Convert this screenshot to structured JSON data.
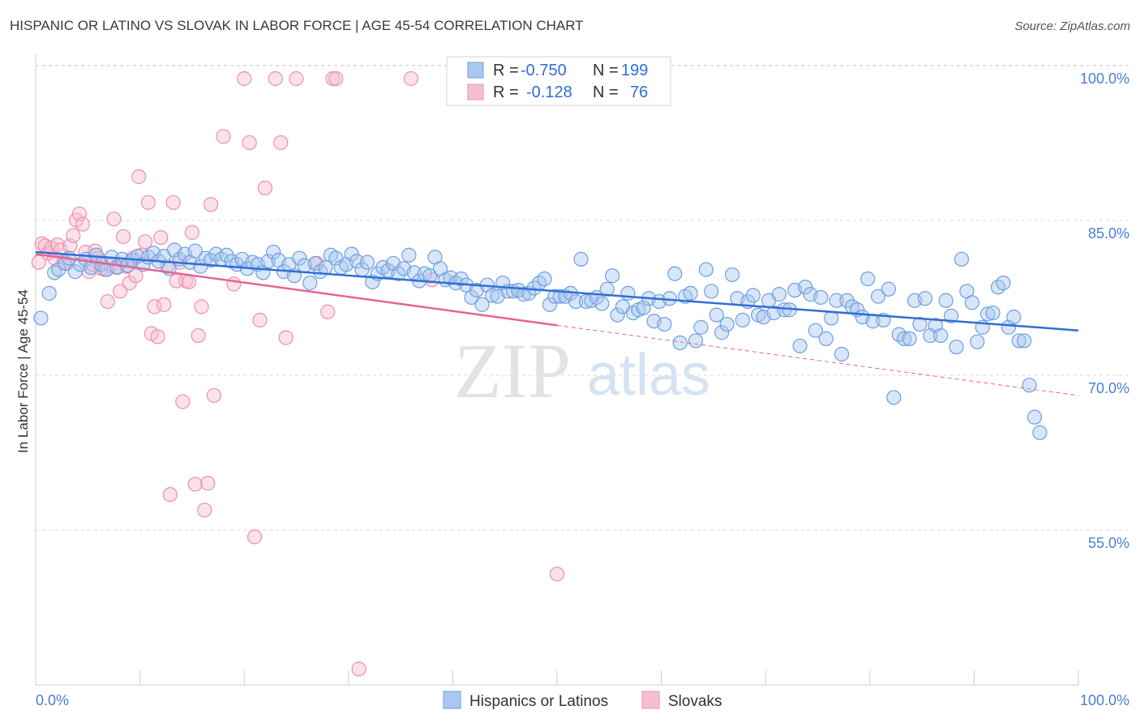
{
  "title": "HISPANIC OR LATINO VS SLOVAK IN LABOR FORCE | AGE 45-54 CORRELATION CHART",
  "source": "Source: ZipAtlas.com",
  "colors": {
    "blue_fill": "#a9c8f0",
    "blue_stroke": "#6d9fe0",
    "blue_line": "#2f6fd6",
    "pink_fill": "#f6bfd0",
    "pink_stroke": "#ee8fae",
    "pink_line": "#e8638f",
    "tick_text": "#4a7fd0",
    "grid": "#d8d8d8"
  },
  "watermark": {
    "zip": "ZIP",
    "atlas": "atlas"
  },
  "legend": {
    "rows": [
      {
        "r_label": "R =",
        "r_value": "-0.750",
        "n_label": "N =",
        "n_value": "199"
      },
      {
        "r_label": "R =",
        "r_value": "-0.128",
        "n_label": "N =",
        "n_value": "76"
      }
    ]
  },
  "chart_data": {
    "type": "scatter",
    "title": "HISPANIC OR LATINO VS SLOVAK IN LABOR FORCE | AGE 45-54 CORRELATION CHART",
    "xlabel": "",
    "ylabel": "In Labor Force | Age 45-54",
    "xlim": [
      0,
      100
    ],
    "ylim": [
      40,
      102
    ],
    "x_tick_labels": [
      "0.0%",
      "100.0%"
    ],
    "y_ticks": [
      55,
      70,
      85,
      100
    ],
    "y_tick_labels": [
      "55.0%",
      "70.0%",
      "85.0%",
      "100.0%"
    ],
    "grid": true,
    "legend_position": "top-center",
    "series": [
      {
        "name": "Hispanics or Latinos",
        "r": -0.75,
        "n": 199,
        "trend": {
          "x": [
            0,
            100
          ],
          "y": [
            83.2,
            75.6
          ]
        },
        "points": [
          [
            0.5,
            76.8
          ],
          [
            1.3,
            79.2
          ],
          [
            1.8,
            81.2
          ],
          [
            2.2,
            81.5
          ],
          [
            2.8,
            82.1
          ],
          [
            3.2,
            82.6
          ],
          [
            3.8,
            81.3
          ],
          [
            4.3,
            82.0
          ],
          [
            4.8,
            82.5
          ],
          [
            5.3,
            81.7
          ],
          [
            5.8,
            82.9
          ],
          [
            6.3,
            82.0
          ],
          [
            6.8,
            81.5
          ],
          [
            7.3,
            82.7
          ],
          [
            7.8,
            81.7
          ],
          [
            8.3,
            82.5
          ],
          [
            8.8,
            81.9
          ],
          [
            9.3,
            82.4
          ],
          [
            9.8,
            82.8
          ],
          [
            10.3,
            82.0
          ],
          [
            10.8,
            82.7
          ],
          [
            11.3,
            83.1
          ],
          [
            11.8,
            82.3
          ],
          [
            12.3,
            82.8
          ],
          [
            12.8,
            81.6
          ],
          [
            13.3,
            83.4
          ],
          [
            13.8,
            82.5
          ],
          [
            14.3,
            83.0
          ],
          [
            14.8,
            82.2
          ],
          [
            15.3,
            83.3
          ],
          [
            15.8,
            81.8
          ],
          [
            16.3,
            82.6
          ],
          [
            16.8,
            82.4
          ],
          [
            17.3,
            83.0
          ],
          [
            17.8,
            82.5
          ],
          [
            18.3,
            82.9
          ],
          [
            18.8,
            82.3
          ],
          [
            19.3,
            82.0
          ],
          [
            19.8,
            82.5
          ],
          [
            20.3,
            81.6
          ],
          [
            20.8,
            82.2
          ],
          [
            21.3,
            82.0
          ],
          [
            21.8,
            81.2
          ],
          [
            22.3,
            82.3
          ],
          [
            22.8,
            83.2
          ],
          [
            23.3,
            82.4
          ],
          [
            23.8,
            81.3
          ],
          [
            24.3,
            82.0
          ],
          [
            24.8,
            80.9
          ],
          [
            25.3,
            82.6
          ],
          [
            25.8,
            81.9
          ],
          [
            26.3,
            80.2
          ],
          [
            26.8,
            82.1
          ],
          [
            27.3,
            81.3
          ],
          [
            27.8,
            81.7
          ],
          [
            28.3,
            82.9
          ],
          [
            28.8,
            82.6
          ],
          [
            29.3,
            81.7
          ],
          [
            29.8,
            82.0
          ],
          [
            30.3,
            83.0
          ],
          [
            30.8,
            82.3
          ],
          [
            31.3,
            81.5
          ],
          [
            31.8,
            82.2
          ],
          [
            32.3,
            80.3
          ],
          [
            32.8,
            81.1
          ],
          [
            33.3,
            81.7
          ],
          [
            33.8,
            81.4
          ],
          [
            34.3,
            82.1
          ],
          [
            34.8,
            81.1
          ],
          [
            35.3,
            81.6
          ],
          [
            35.8,
            82.9
          ],
          [
            36.3,
            81.2
          ],
          [
            36.8,
            80.4
          ],
          [
            37.3,
            81.1
          ],
          [
            37.8,
            80.9
          ],
          [
            38.3,
            82.7
          ],
          [
            38.8,
            81.6
          ],
          [
            39.3,
            80.5
          ],
          [
            39.8,
            80.7
          ],
          [
            40.3,
            80.2
          ],
          [
            40.8,
            80.6
          ],
          [
            41.3,
            80.0
          ],
          [
            41.8,
            78.8
          ],
          [
            42.3,
            79.5
          ],
          [
            42.8,
            78.1
          ],
          [
            43.3,
            80.0
          ],
          [
            43.8,
            79.0
          ],
          [
            44.3,
            78.9
          ],
          [
            44.8,
            80.2
          ],
          [
            45.3,
            79.4
          ],
          [
            45.8,
            79.4
          ],
          [
            46.3,
            79.5
          ],
          [
            46.8,
            79.1
          ],
          [
            47.3,
            79.2
          ],
          [
            47.8,
            79.7
          ],
          [
            48.3,
            80.2
          ],
          [
            48.8,
            80.6
          ],
          [
            49.3,
            78.1
          ],
          [
            49.8,
            78.9
          ],
          [
            50.3,
            78.9
          ],
          [
            50.8,
            78.9
          ],
          [
            51.3,
            79.2
          ],
          [
            51.8,
            78.4
          ],
          [
            52.3,
            82.5
          ],
          [
            52.8,
            78.4
          ],
          [
            53.3,
            78.5
          ],
          [
            53.8,
            78.8
          ],
          [
            54.3,
            78.2
          ],
          [
            54.8,
            79.6
          ],
          [
            55.3,
            80.9
          ],
          [
            55.8,
            77.1
          ],
          [
            56.3,
            77.9
          ],
          [
            56.8,
            79.2
          ],
          [
            57.3,
            77.3
          ],
          [
            57.8,
            77.6
          ],
          [
            58.3,
            77.8
          ],
          [
            58.8,
            78.7
          ],
          [
            59.3,
            76.5
          ],
          [
            59.8,
            78.4
          ],
          [
            60.3,
            76.2
          ],
          [
            60.8,
            78.7
          ],
          [
            61.3,
            81.1
          ],
          [
            61.8,
            74.4
          ],
          [
            62.3,
            78.9
          ],
          [
            62.8,
            79.2
          ],
          [
            63.3,
            74.6
          ],
          [
            63.8,
            75.9
          ],
          [
            64.3,
            81.5
          ],
          [
            64.8,
            79.4
          ],
          [
            65.3,
            77.1
          ],
          [
            65.8,
            75.4
          ],
          [
            66.3,
            76.2
          ],
          [
            66.8,
            81.0
          ],
          [
            67.3,
            78.7
          ],
          [
            67.8,
            76.6
          ],
          [
            68.3,
            78.4
          ],
          [
            68.8,
            79.0
          ],
          [
            69.3,
            77.1
          ],
          [
            69.8,
            76.9
          ],
          [
            70.3,
            78.5
          ],
          [
            70.8,
            77.3
          ],
          [
            71.3,
            79.1
          ],
          [
            71.8,
            77.6
          ],
          [
            72.3,
            77.6
          ],
          [
            72.8,
            79.5
          ],
          [
            73.3,
            74.1
          ],
          [
            73.8,
            79.8
          ],
          [
            74.3,
            79.1
          ],
          [
            74.8,
            75.6
          ],
          [
            75.3,
            78.8
          ],
          [
            75.8,
            74.8
          ],
          [
            76.3,
            76.8
          ],
          [
            76.8,
            78.5
          ],
          [
            77.3,
            73.3
          ],
          [
            77.8,
            78.5
          ],
          [
            78.3,
            77.9
          ],
          [
            78.8,
            77.6
          ],
          [
            79.3,
            76.9
          ],
          [
            79.8,
            80.6
          ],
          [
            80.3,
            76.5
          ],
          [
            80.8,
            78.9
          ],
          [
            81.3,
            76.6
          ],
          [
            81.8,
            79.6
          ],
          [
            82.3,
            69.1
          ],
          [
            82.8,
            75.2
          ],
          [
            83.3,
            74.8
          ],
          [
            83.8,
            74.8
          ],
          [
            84.3,
            78.5
          ],
          [
            84.8,
            76.2
          ],
          [
            85.3,
            78.7
          ],
          [
            85.8,
            75.1
          ],
          [
            86.3,
            76.1
          ],
          [
            86.8,
            75.1
          ],
          [
            87.3,
            78.5
          ],
          [
            87.8,
            77.0
          ],
          [
            88.3,
            74.0
          ],
          [
            88.8,
            82.5
          ],
          [
            89.3,
            79.4
          ],
          [
            89.8,
            78.3
          ],
          [
            90.3,
            74.5
          ],
          [
            90.8,
            75.9
          ],
          [
            91.3,
            77.2
          ],
          [
            91.8,
            77.3
          ],
          [
            92.3,
            79.8
          ],
          [
            92.8,
            80.2
          ],
          [
            93.3,
            75.9
          ],
          [
            93.8,
            76.9
          ],
          [
            94.3,
            74.6
          ],
          [
            94.8,
            74.6
          ],
          [
            95.3,
            70.3
          ],
          [
            95.8,
            67.2
          ],
          [
            96.3,
            65.7
          ]
        ]
      },
      {
        "name": "Slovaks",
        "r": -0.128,
        "n": 76,
        "trend": {
          "x": [
            0,
            50
          ],
          "y": [
            83.0,
            76.1
          ]
        },
        "trend_dashed": {
          "x": [
            50,
            100
          ],
          "y": [
            76.1,
            69.3
          ]
        },
        "points": [
          [
            0.3,
            82.2
          ],
          [
            0.6,
            84.0
          ],
          [
            0.9,
            83.8
          ],
          [
            1.2,
            83.1
          ],
          [
            1.5,
            83.6
          ],
          [
            1.8,
            82.6
          ],
          [
            2.1,
            83.9
          ],
          [
            2.4,
            83.4
          ],
          [
            2.7,
            82.3
          ],
          [
            3.0,
            82.1
          ],
          [
            3.3,
            83.8
          ],
          [
            3.6,
            84.8
          ],
          [
            3.9,
            86.3
          ],
          [
            4.2,
            86.9
          ],
          [
            4.5,
            85.9
          ],
          [
            4.8,
            83.2
          ],
          [
            5.1,
            81.3
          ],
          [
            5.4,
            82.0
          ],
          [
            5.7,
            83.3
          ],
          [
            6.0,
            82.6
          ],
          [
            6.3,
            81.6
          ],
          [
            6.6,
            81.5
          ],
          [
            6.9,
            78.4
          ],
          [
            7.2,
            81.9
          ],
          [
            7.5,
            86.4
          ],
          [
            7.8,
            81.8
          ],
          [
            8.1,
            79.4
          ],
          [
            8.4,
            84.7
          ],
          [
            8.7,
            81.8
          ],
          [
            9.0,
            80.2
          ],
          [
            9.3,
            82.6
          ],
          [
            9.6,
            80.9
          ],
          [
            9.9,
            90.5
          ],
          [
            10.2,
            82.9
          ],
          [
            10.5,
            84.2
          ],
          [
            10.8,
            88.0
          ],
          [
            11.1,
            75.3
          ],
          [
            11.4,
            77.9
          ],
          [
            11.7,
            75.0
          ],
          [
            12.0,
            84.6
          ],
          [
            12.3,
            78.1
          ],
          [
            12.6,
            81.8
          ],
          [
            12.9,
            59.7
          ],
          [
            13.2,
            88.0
          ],
          [
            13.5,
            80.4
          ],
          [
            13.8,
            82.2
          ],
          [
            14.1,
            68.7
          ],
          [
            14.4,
            80.4
          ],
          [
            14.7,
            80.3
          ],
          [
            15.0,
            85.1
          ],
          [
            15.3,
            60.7
          ],
          [
            15.6,
            75.1
          ],
          [
            15.9,
            77.9
          ],
          [
            16.2,
            58.2
          ],
          [
            16.5,
            60.8
          ],
          [
            16.8,
            87.8
          ],
          [
            17.1,
            69.3
          ],
          [
            18.0,
            94.4
          ],
          [
            19.0,
            80.1
          ],
          [
            20.0,
            100.0
          ],
          [
            20.5,
            93.8
          ],
          [
            21.0,
            55.6
          ],
          [
            21.5,
            76.6
          ],
          [
            22.0,
            89.4
          ],
          [
            23.0,
            100.0
          ],
          [
            23.5,
            93.8
          ],
          [
            24.0,
            74.9
          ],
          [
            25.0,
            100.0
          ],
          [
            27.0,
            82.1
          ],
          [
            28.0,
            77.4
          ],
          [
            28.5,
            100.0
          ],
          [
            28.8,
            100.0
          ],
          [
            31.0,
            42.8
          ],
          [
            36.0,
            100.0
          ],
          [
            38.0,
            80.5
          ],
          [
            50.0,
            52.0
          ]
        ]
      }
    ]
  }
}
